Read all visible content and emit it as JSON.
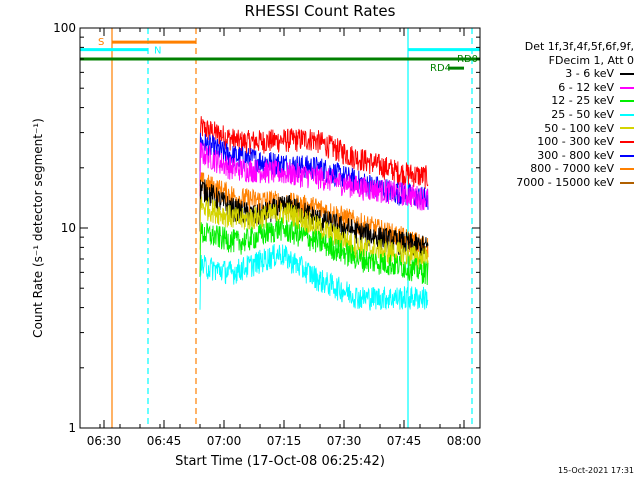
{
  "chart_data": {
    "type": "line",
    "title": "RHESSI Count Rates",
    "xlabel": "Start Time (17-Oct-08 06:25:42)",
    "ylabel": "Count Rate (s⁻¹ detector segment⁻¹)",
    "yscale": "log",
    "ylim": [
      1,
      100
    ],
    "xlim_minutes": [
      "06:24",
      "08:04"
    ],
    "x_ticks": [
      "06:30",
      "06:45",
      "07:00",
      "07:15",
      "07:30",
      "07:45",
      "08:00"
    ],
    "y_ticks": [
      "1",
      "10",
      "100"
    ],
    "legend": {
      "header": [
        "Det 1f,3f,4f,5f,6f,9f,",
        "FDecim 1, Att 0"
      ],
      "entries": [
        {
          "label": "3 - 6 keV",
          "color": "#000000"
        },
        {
          "label": "6 - 12 keV",
          "color": "#ff00ff"
        },
        {
          "label": "12 - 25 keV",
          "color": "#00ee00"
        },
        {
          "label": "25 - 50 keV",
          "color": "#00ffff"
        },
        {
          "label": "50 - 100 keV",
          "color": "#d4d400"
        },
        {
          "label": "100 - 300 keV",
          "color": "#ff0000"
        },
        {
          "label": "300 - 800 keV",
          "color": "#0000ff"
        },
        {
          "label": "800 - 7000 keV",
          "color": "#ff8000"
        },
        {
          "label": "7000 - 15000 keV",
          "color": "#b06000"
        }
      ]
    },
    "series": [
      {
        "name": "100 - 300 keV",
        "color": "#ff0000",
        "start": "06:54",
        "end": "07:51",
        "anchors": [
          [
            0,
            32
          ],
          [
            10,
            27
          ],
          [
            20,
            27.5
          ],
          [
            28,
            28
          ],
          [
            38,
            23
          ],
          [
            50,
            19
          ],
          [
            57,
            18
          ]
        ]
      },
      {
        "name": "300 - 800 keV",
        "color": "#0000ff",
        "start": "06:54",
        "end": "07:51",
        "anchors": [
          [
            0,
            27
          ],
          [
            8,
            23
          ],
          [
            20,
            21
          ],
          [
            30,
            20
          ],
          [
            40,
            17
          ],
          [
            50,
            15
          ],
          [
            57,
            14
          ]
        ]
      },
      {
        "name": "6 - 12 keV",
        "color": "#ff00ff",
        "start": "06:54",
        "end": "07:51",
        "anchors": [
          [
            0,
            24
          ],
          [
            8,
            20
          ],
          [
            20,
            19
          ],
          [
            30,
            18
          ],
          [
            40,
            16
          ],
          [
            50,
            15
          ],
          [
            57,
            14
          ]
        ]
      },
      {
        "name": "800 - 7000 keV",
        "color": "#ff8000",
        "start": "06:54",
        "end": "07:51",
        "anchors": [
          [
            0,
            17
          ],
          [
            10,
            14
          ],
          [
            20,
            13.5
          ],
          [
            30,
            12.5
          ],
          [
            40,
            10.5
          ],
          [
            50,
            9
          ],
          [
            57,
            8
          ]
        ]
      },
      {
        "name": "3 - 6 keV",
        "color": "#000000",
        "start": "06:54",
        "end": "07:51",
        "anchors": [
          [
            0,
            16
          ],
          [
            8,
            12.5
          ],
          [
            14,
            11.5
          ],
          [
            22,
            13
          ],
          [
            30,
            11
          ],
          [
            40,
            9.5
          ],
          [
            50,
            8.5
          ],
          [
            57,
            8
          ]
        ]
      },
      {
        "name": "50 - 100 keV",
        "color": "#d4d400",
        "start": "06:54",
        "end": "07:51",
        "anchors": [
          [
            0,
            13
          ],
          [
            10,
            11
          ],
          [
            22,
            12
          ],
          [
            30,
            10
          ],
          [
            40,
            8
          ],
          [
            50,
            7.5
          ],
          [
            57,
            7
          ]
        ]
      },
      {
        "name": "12 - 25 keV",
        "color": "#00ee00",
        "start": "06:54",
        "end": "07:51",
        "anchors": [
          [
            0,
            9.5
          ],
          [
            10,
            8.5
          ],
          [
            20,
            10
          ],
          [
            30,
            8.5
          ],
          [
            40,
            7
          ],
          [
            50,
            6.5
          ],
          [
            57,
            6
          ]
        ]
      },
      {
        "name": "25 - 50 keV",
        "color": "#00ffff",
        "start": "06:54",
        "end": "07:51",
        "anchors": [
          [
            0,
            6.5
          ],
          [
            8,
            6
          ],
          [
            20,
            7.5
          ],
          [
            30,
            5.5
          ],
          [
            40,
            4.5
          ],
          [
            50,
            4.5
          ],
          [
            57,
            4.5
          ]
        ]
      }
    ],
    "flags": {
      "saa_label": "S",
      "night_label": "N",
      "rd_labels": [
        "RD0",
        "RD4"
      ],
      "horizontal_bars": [
        {
          "label": "S",
          "color": "#ff8000",
          "x0": "06:32",
          "x1": "06:53",
          "y": 85
        },
        {
          "label": "",
          "color": "#00ffff",
          "x0": "06:24",
          "x1": "06:41",
          "y": 78
        },
        {
          "label": "",
          "color": "#00ffff",
          "x0": "07:46",
          "x1": "08:04",
          "y": 78
        },
        {
          "label": "",
          "color": "#008000",
          "x0": "06:24",
          "x1": "08:04",
          "y": 70
        },
        {
          "label": "RD0",
          "color": "#008000",
          "x0": "07:46",
          "x1": "08:04",
          "y": 70
        },
        {
          "label": "RD4",
          "color": "#008000",
          "x0": "07:56",
          "x1": "08:00",
          "y": 63
        }
      ],
      "vertical_lines": [
        {
          "color": "#ff8000",
          "x": "06:32",
          "style": "solid"
        },
        {
          "color": "#ff8000",
          "x": "06:53",
          "style": "dash"
        },
        {
          "color": "#00ffff",
          "x": "06:41",
          "style": "dash"
        },
        {
          "color": "#00ffff",
          "x": "07:46",
          "style": "solid"
        },
        {
          "color": "#00ffff",
          "x": "08:02",
          "style": "dash"
        }
      ]
    }
  },
  "timestamp": "15-Oct-2021 17:31"
}
